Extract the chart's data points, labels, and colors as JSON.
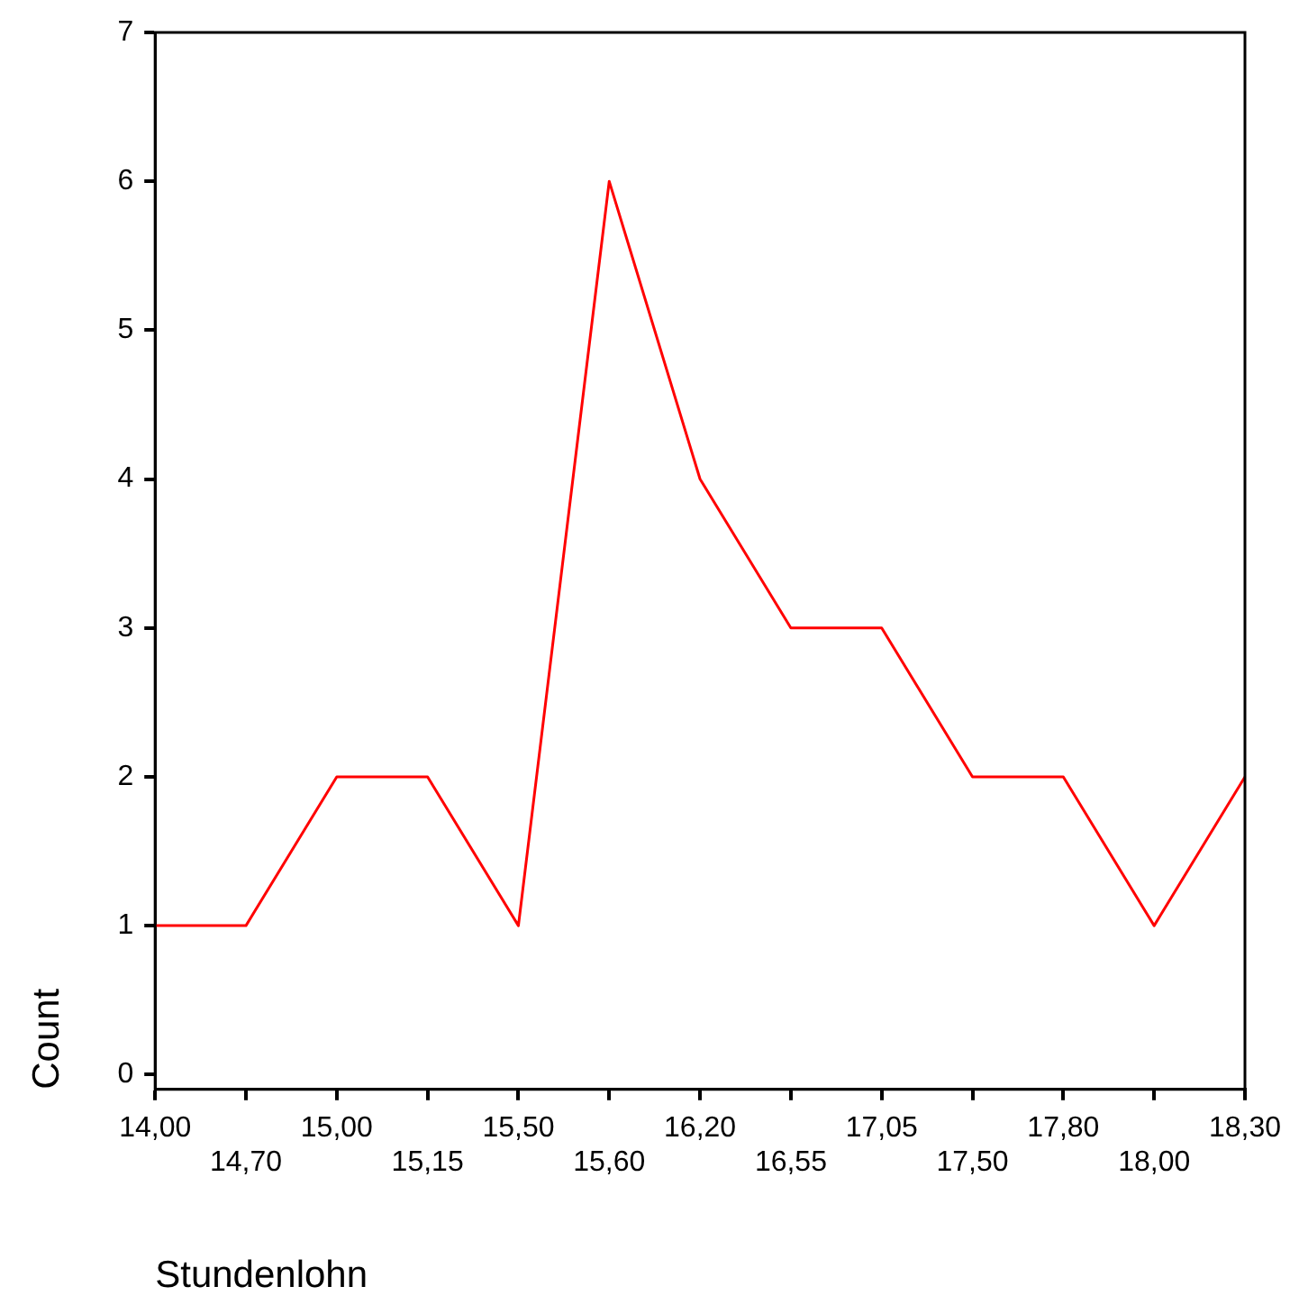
{
  "chart_data": {
    "type": "line",
    "xlabel": "Stundenlohn",
    "ylabel": "Count",
    "categories": [
      "14,00",
      "14,70",
      "15,00",
      "15,15",
      "15,50",
      "15,60",
      "16,20",
      "16,55",
      "17,05",
      "17,50",
      "17,80",
      "18,00",
      "18,30"
    ],
    "series": [
      {
        "color": "#ff0000",
        "values": [
          1,
          1,
          2,
          2,
          1,
          6,
          4,
          3,
          3,
          2,
          2,
          1,
          2
        ]
      }
    ],
    "ylim": [
      -0.1,
      7
    ],
    "yticks": [
      0,
      1,
      2,
      3,
      4,
      5,
      6,
      7
    ],
    "grid": false,
    "legend": false,
    "marker": "none",
    "line_style": "solid"
  }
}
